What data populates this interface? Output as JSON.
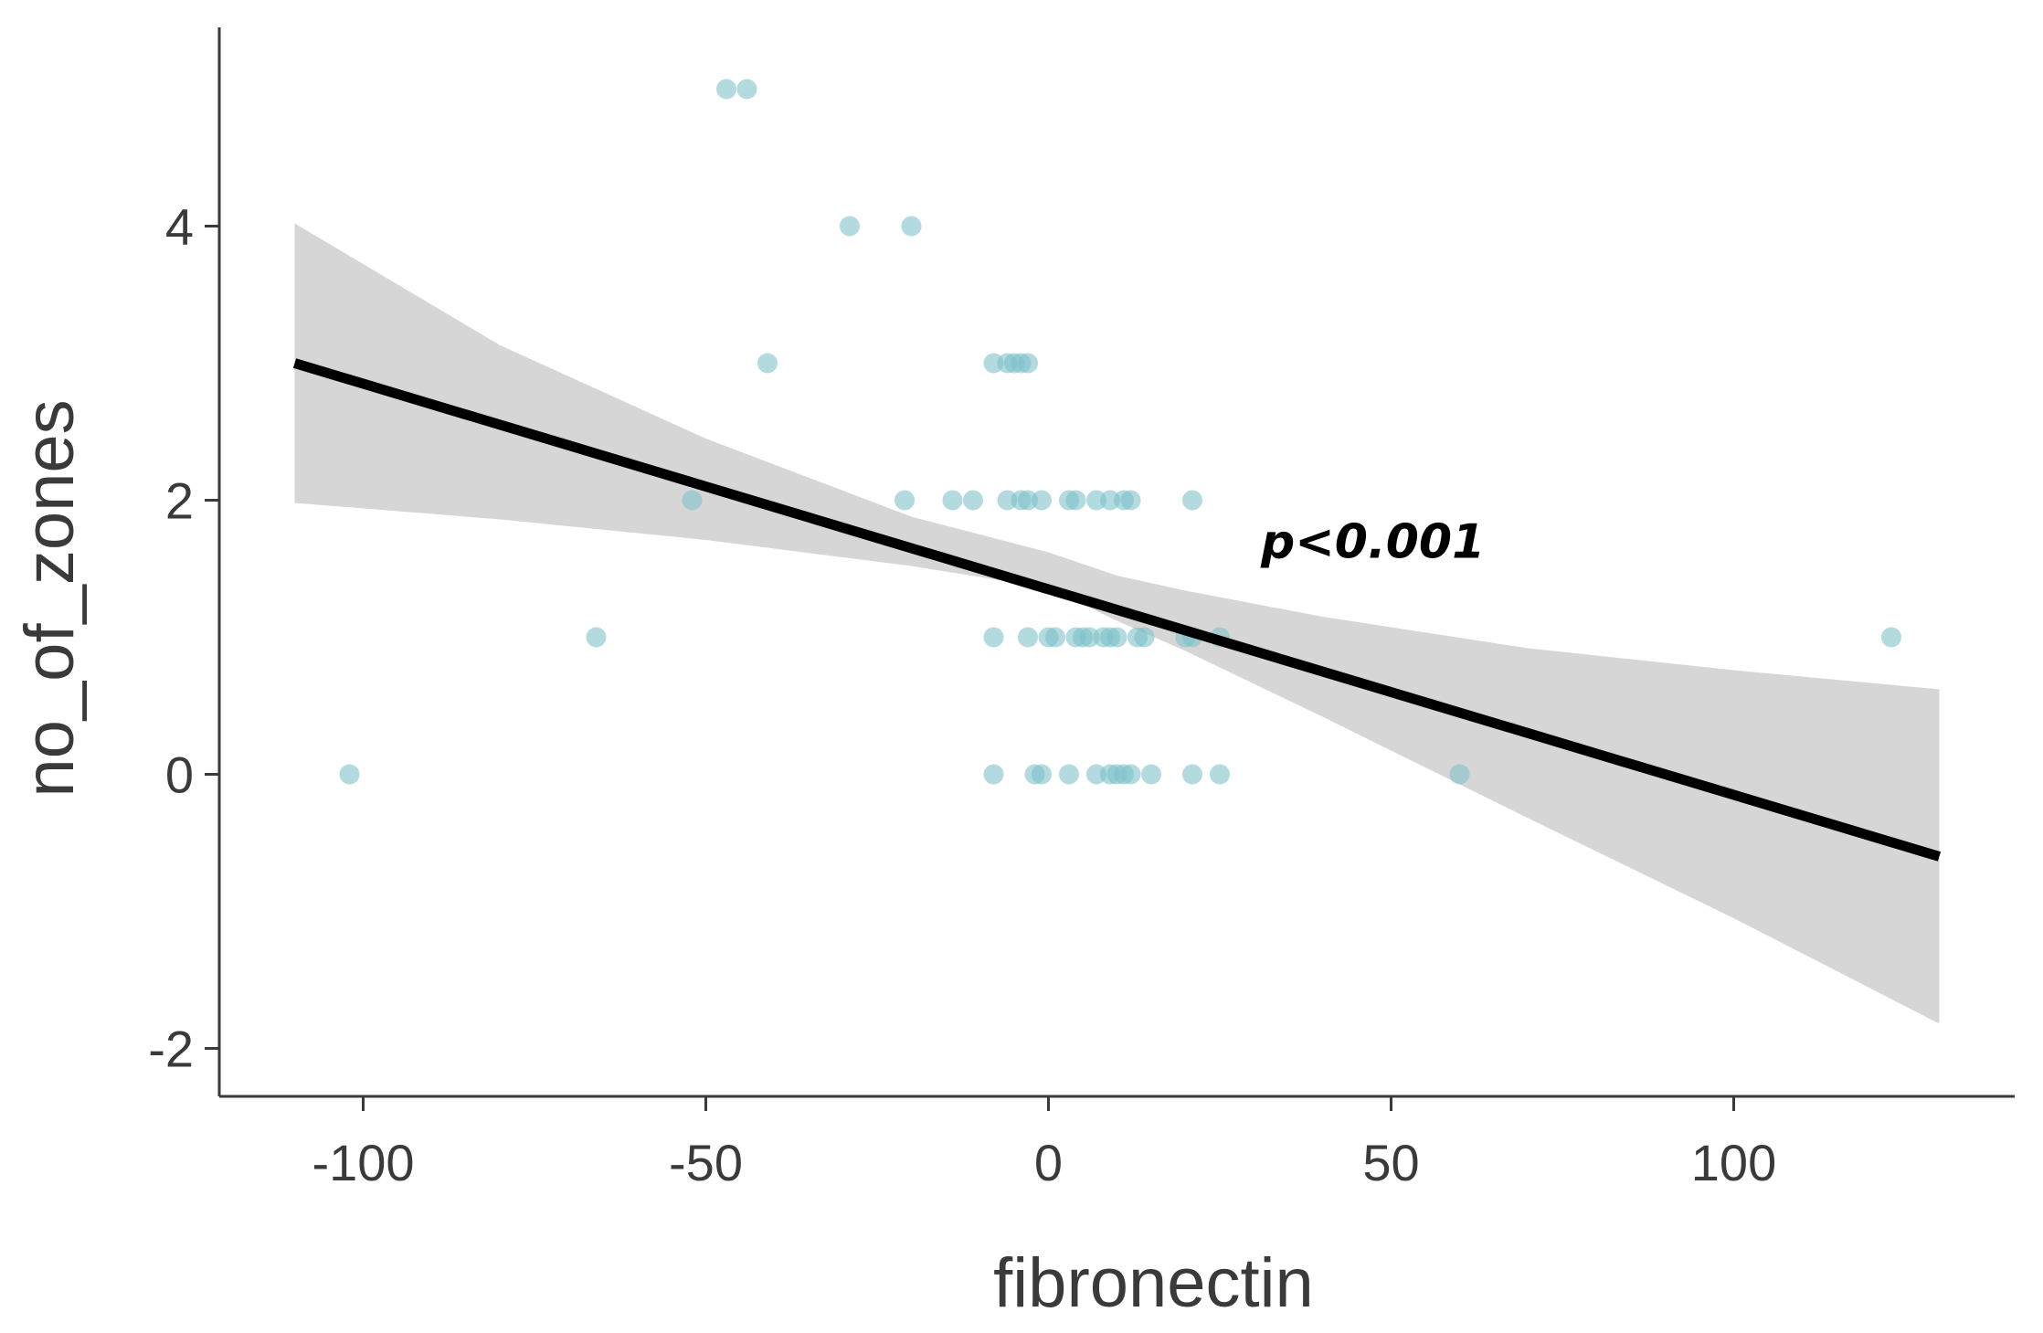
{
  "chart_data": {
    "type": "scatter",
    "title": "",
    "xlabel": "fibronectin",
    "ylabel": "no_of_zones",
    "xlim": [
      -121,
      141
    ],
    "ylim": [
      -2.35,
      5.45
    ],
    "xticks": [
      -100,
      -50,
      0,
      50,
      100
    ],
    "yticks": [
      -2,
      0,
      2,
      4
    ],
    "xtick_labels": [
      "-100",
      "-50",
      "0",
      "50",
      "100"
    ],
    "ytick_labels": [
      "-2",
      "0",
      "2",
      "4"
    ],
    "grid": false,
    "point_color": "#7fc1c9",
    "line_color": "#000000",
    "band_color": "#d6d6d6",
    "points": [
      {
        "x": -47,
        "y": 5
      },
      {
        "x": -44,
        "y": 5
      },
      {
        "x": -29,
        "y": 4
      },
      {
        "x": -20,
        "y": 4
      },
      {
        "x": -41,
        "y": 3
      },
      {
        "x": -8,
        "y": 3
      },
      {
        "x": -6,
        "y": 3
      },
      {
        "x": -5,
        "y": 3
      },
      {
        "x": -4,
        "y": 3
      },
      {
        "x": -3,
        "y": 3
      },
      {
        "x": -52,
        "y": 2
      },
      {
        "x": -21,
        "y": 2
      },
      {
        "x": -14,
        "y": 2
      },
      {
        "x": -11,
        "y": 2
      },
      {
        "x": -6,
        "y": 2
      },
      {
        "x": -4,
        "y": 2
      },
      {
        "x": -3,
        "y": 2
      },
      {
        "x": -1,
        "y": 2
      },
      {
        "x": 3,
        "y": 2
      },
      {
        "x": 4,
        "y": 2
      },
      {
        "x": 7,
        "y": 2
      },
      {
        "x": 9,
        "y": 2
      },
      {
        "x": 11,
        "y": 2
      },
      {
        "x": 12,
        "y": 2
      },
      {
        "x": 21,
        "y": 2
      },
      {
        "x": -66,
        "y": 1
      },
      {
        "x": -8,
        "y": 1
      },
      {
        "x": -3,
        "y": 1
      },
      {
        "x": 0,
        "y": 1
      },
      {
        "x": 1,
        "y": 1
      },
      {
        "x": 4,
        "y": 1
      },
      {
        "x": 5,
        "y": 1
      },
      {
        "x": 6,
        "y": 1
      },
      {
        "x": 8,
        "y": 1
      },
      {
        "x": 9,
        "y": 1
      },
      {
        "x": 10,
        "y": 1
      },
      {
        "x": 13,
        "y": 1
      },
      {
        "x": 14,
        "y": 1
      },
      {
        "x": 20,
        "y": 1
      },
      {
        "x": 21,
        "y": 1
      },
      {
        "x": 25,
        "y": 1
      },
      {
        "x": 123,
        "y": 1
      },
      {
        "x": -102,
        "y": 0
      },
      {
        "x": -8,
        "y": 0
      },
      {
        "x": -2,
        "y": 0
      },
      {
        "x": -1,
        "y": 0
      },
      {
        "x": 3,
        "y": 0
      },
      {
        "x": 7,
        "y": 0
      },
      {
        "x": 9,
        "y": 0
      },
      {
        "x": 10,
        "y": 0
      },
      {
        "x": 11,
        "y": 0
      },
      {
        "x": 12,
        "y": 0
      },
      {
        "x": 15,
        "y": 0
      },
      {
        "x": 21,
        "y": 0
      },
      {
        "x": 25,
        "y": 0
      },
      {
        "x": 60,
        "y": 0
      }
    ],
    "regression_line": [
      {
        "x": -110,
        "y": 3.0
      },
      {
        "x": 130,
        "y": -0.6
      }
    ],
    "confidence_band": [
      {
        "x": -110,
        "lower": 1.98,
        "upper": 4.02
      },
      {
        "x": -80,
        "lower": 1.86,
        "upper": 3.13
      },
      {
        "x": -50,
        "lower": 1.71,
        "upper": 2.45
      },
      {
        "x": -20,
        "lower": 1.52,
        "upper": 1.88
      },
      {
        "x": 0,
        "lower": 1.36,
        "upper": 1.62
      },
      {
        "x": 10,
        "lower": 1.12,
        "upper": 1.45
      },
      {
        "x": 20,
        "lower": 0.9,
        "upper": 1.34
      },
      {
        "x": 40,
        "lower": 0.42,
        "upper": 1.15
      },
      {
        "x": 70,
        "lower": -0.32,
        "upper": 0.92
      },
      {
        "x": 100,
        "lower": -1.05,
        "upper": 0.76
      },
      {
        "x": 130,
        "lower": -1.82,
        "upper": 0.62
      }
    ],
    "annotations": [
      {
        "text": "p<0.001",
        "x": 31,
        "y": 1.7
      }
    ]
  }
}
